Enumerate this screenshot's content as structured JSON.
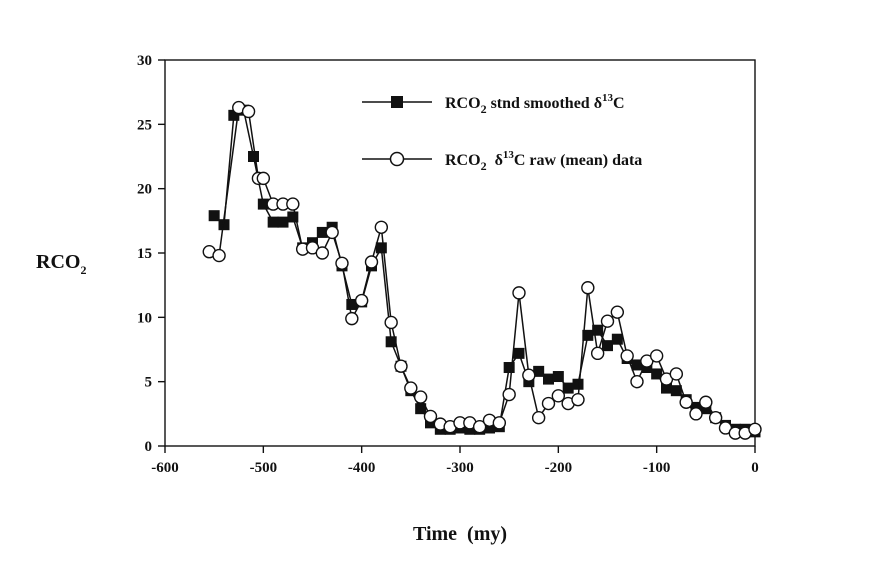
{
  "chart_data": {
    "type": "line",
    "title": "",
    "xlabel": "Time  (my)",
    "ylabel": {
      "base": "RCO",
      "sub": "2"
    },
    "xlim": [
      -600,
      0
    ],
    "ylim": [
      0,
      30
    ],
    "x_ticks": [
      -600,
      -500,
      -400,
      -300,
      -200,
      -100,
      0
    ],
    "y_ticks": [
      0,
      5,
      10,
      15,
      20,
      25,
      30
    ],
    "grid": false,
    "legend_position": "top-right",
    "series": [
      {
        "name": {
          "a": "RCO",
          "sub": "2",
          "b": " stnd smoothed ",
          "delta": "δ",
          "sup": "13",
          "c": "C"
        },
        "marker": "filled-square",
        "x": [
          -550,
          -540,
          -530,
          -520,
          -510,
          -500,
          -490,
          -480,
          -470,
          -460,
          -450,
          -440,
          -430,
          -420,
          -410,
          -400,
          -390,
          -380,
          -370,
          -360,
          -350,
          -340,
          -330,
          -320,
          -310,
          -300,
          -290,
          -280,
          -270,
          -260,
          -250,
          -240,
          -230,
          -220,
          -210,
          -200,
          -190,
          -180,
          -170,
          -160,
          -150,
          -140,
          -130,
          -120,
          -110,
          -100,
          -90,
          -80,
          -70,
          -60,
          -50,
          -40,
          -30,
          -20,
          -10,
          0
        ],
        "y": [
          17.9,
          17.2,
          25.7,
          26.1,
          22.5,
          18.8,
          17.4,
          17.4,
          17.8,
          15.4,
          15.8,
          16.6,
          17.0,
          14.0,
          11.0,
          11.2,
          14.0,
          15.4,
          8.1,
          6.2,
          4.3,
          2.9,
          1.8,
          1.3,
          1.3,
          1.4,
          1.3,
          1.3,
          1.4,
          1.5,
          6.1,
          7.2,
          5.0,
          5.8,
          5.2,
          5.4,
          4.5,
          4.8,
          8.6,
          9.0,
          7.8,
          8.3,
          6.8,
          6.3,
          6.1,
          5.6,
          4.5,
          4.3,
          3.6,
          3.0,
          2.9,
          2.2,
          1.6,
          1.3,
          1.3,
          1.1
        ]
      },
      {
        "name": {
          "a": "RCO",
          "sub": "2",
          "b": "  ",
          "delta": "δ",
          "sup": "13",
          "c": "C raw (mean) data"
        },
        "marker": "open-circle",
        "x": [
          -555,
          -545,
          -525,
          -515,
          -505,
          -500,
          -490,
          -480,
          -470,
          -460,
          -450,
          -440,
          -430,
          -420,
          -410,
          -400,
          -390,
          -380,
          -370,
          -360,
          -350,
          -340,
          -330,
          -320,
          -310,
          -300,
          -290,
          -280,
          -270,
          -260,
          -250,
          -240,
          -230,
          -220,
          -210,
          -200,
          -190,
          -180,
          -170,
          -160,
          -150,
          -140,
          -130,
          -120,
          -110,
          -100,
          -90,
          -80,
          -70,
          -60,
          -50,
          -40,
          -30,
          -20,
          -10,
          0
        ],
        "y": [
          15.1,
          14.8,
          26.3,
          26.0,
          20.8,
          20.8,
          18.8,
          18.8,
          18.8,
          15.3,
          15.4,
          15.0,
          16.6,
          14.2,
          9.9,
          11.3,
          14.3,
          17.0,
          9.6,
          6.2,
          4.5,
          3.8,
          2.3,
          1.7,
          1.5,
          1.8,
          1.8,
          1.5,
          2.0,
          1.8,
          4.0,
          11.9,
          5.5,
          2.2,
          3.3,
          3.9,
          3.3,
          3.6,
          12.3,
          7.2,
          9.7,
          10.4,
          7.0,
          5.0,
          6.6,
          7.0,
          5.2,
          5.6,
          3.4,
          2.5,
          3.4,
          2.2,
          1.4,
          1.0,
          1.0,
          1.3
        ]
      }
    ]
  }
}
